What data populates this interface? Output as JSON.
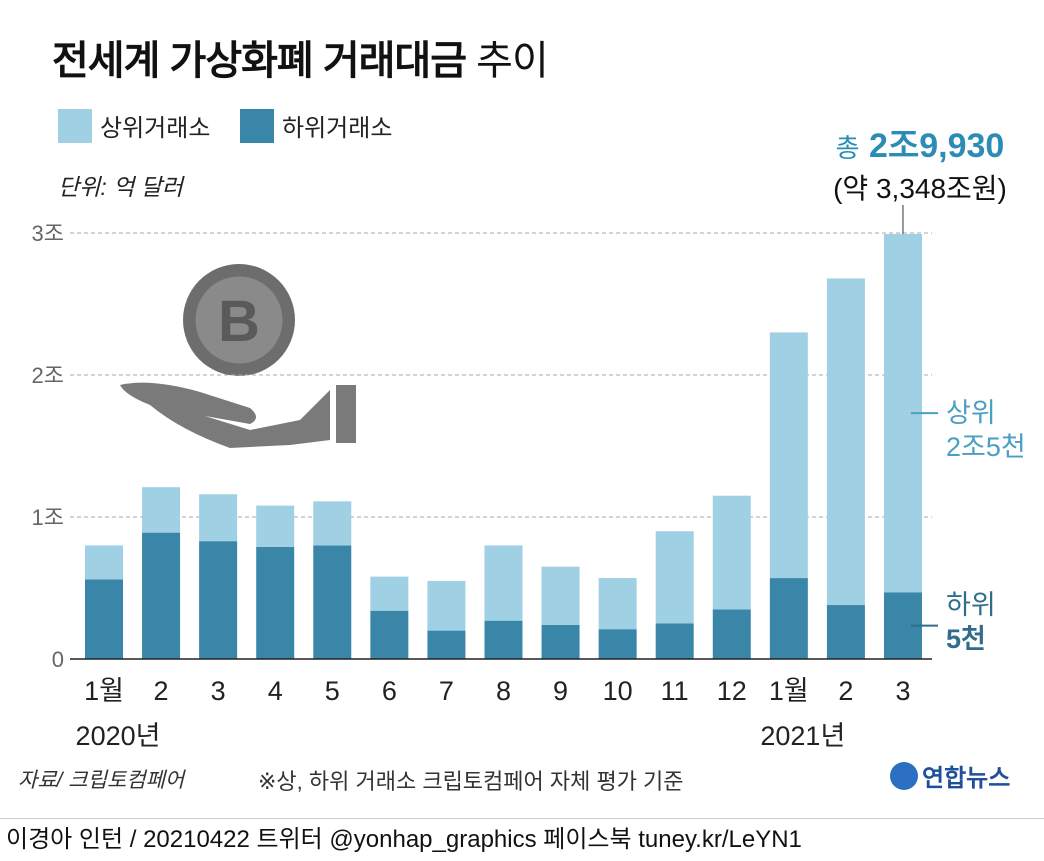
{
  "title_bold": "전세계 가상화폐 거래대금",
  "title_light": "추이",
  "legend": [
    {
      "label": "상위거래소",
      "color": "#9fd0e4"
    },
    {
      "label": "하위거래소",
      "color": "#3a86a8"
    }
  ],
  "unit": "단위: 억 달러",
  "total": {
    "prefix": "총",
    "value": "2조9,930",
    "sub": "(약 3,348조원)"
  },
  "upper_note": {
    "line1": "상위",
    "line2": "2조5천"
  },
  "lower_note": {
    "line1": "하위",
    "line2": "5천"
  },
  "source": "자료/ 크립토컴페어",
  "note": "※상, 하위 거래소 크립토컴페어 자체 평가 기준",
  "logo": "연합뉴스",
  "footer": "이경아 인턴 / 20210422 트위터 @yonhap_graphics  페이스북 tuney.kr/LeYN1",
  "chart_data": {
    "type": "bar",
    "stacked": true,
    "unit": "억 달러",
    "categories": [
      "1월",
      "2",
      "3",
      "4",
      "5",
      "6",
      "7",
      "8",
      "9",
      "10",
      "11",
      "12",
      "1월",
      "2",
      "3"
    ],
    "year_labels": [
      {
        "index": 0,
        "label": "2020년"
      },
      {
        "index": 12,
        "label": "2021년"
      }
    ],
    "series": [
      {
        "name": "하위거래소",
        "color": "#3a86a8",
        "values": [
          5600,
          8900,
          8300,
          7900,
          8000,
          3400,
          2000,
          2700,
          2400,
          2100,
          2500,
          3500,
          5700,
          3800,
          4700
        ]
      },
      {
        "name": "상위거래소",
        "color": "#9fd0e4",
        "values": [
          2400,
          3200,
          3300,
          2900,
          3100,
          2400,
          3500,
          5300,
          4100,
          3600,
          6500,
          8000,
          17300,
          23000,
          25230
        ]
      }
    ],
    "yticks": [
      {
        "value": 0,
        "label": "0"
      },
      {
        "value": 10000,
        "label": "1조"
      },
      {
        "value": 20000,
        "label": "2조"
      },
      {
        "value": 30000,
        "label": "3조"
      }
    ],
    "ylim": [
      0,
      30000
    ],
    "grid": true
  }
}
